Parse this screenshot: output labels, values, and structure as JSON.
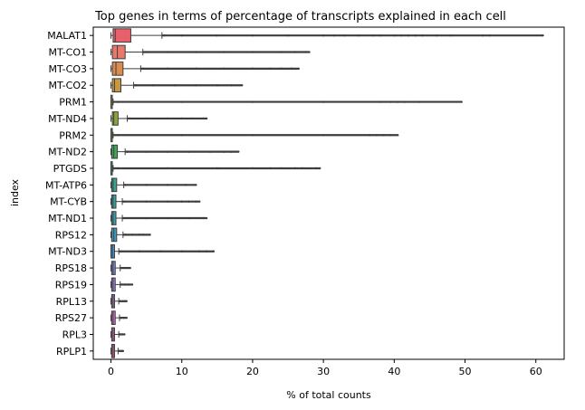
{
  "chart_data": {
    "type": "box",
    "title": "Top genes in terms of percentage of transcripts explained in each cell",
    "xlabel": "% of total counts",
    "ylabel": "index",
    "xlim": [
      -2.5,
      64
    ],
    "xticks": [
      0,
      10,
      20,
      30,
      40,
      50,
      60
    ],
    "grid": false,
    "legend": "none",
    "series": [
      {
        "name": "MALAT1",
        "color": "#e8606a",
        "q1": 0.3,
        "median": 0.6,
        "q3": 2.8,
        "whisker_low": 0.0,
        "whisker_high": 7.2,
        "max": 61.0,
        "outliers": [
          7.5,
          10,
          15,
          20,
          25,
          30,
          31.5,
          33,
          35,
          37,
          38,
          40,
          41,
          42,
          43,
          44,
          46,
          48,
          52.5,
          53.5,
          61
        ]
      },
      {
        "name": "MT-CO1",
        "color": "#e9776a",
        "q1": 0.2,
        "median": 0.9,
        "q3": 2.0,
        "whisker_low": 0.0,
        "whisker_high": 4.5,
        "max": 28.0,
        "outliers": [
          5,
          8,
          12,
          16,
          20,
          24,
          26,
          27.5,
          28
        ]
      },
      {
        "name": "MT-CO3",
        "color": "#d98c4e",
        "q1": 0.2,
        "median": 0.7,
        "q3": 1.7,
        "whisker_low": 0.0,
        "whisker_high": 4.2,
        "max": 26.5,
        "outliers": [
          4.5,
          8,
          12,
          16,
          20,
          22.5,
          24,
          25.5,
          26.5
        ]
      },
      {
        "name": "MT-CO2",
        "color": "#c99740",
        "q1": 0.2,
        "median": 0.5,
        "q3": 1.4,
        "whisker_low": 0.0,
        "whisker_high": 3.2,
        "max": 18.5,
        "outliers": [
          3.5,
          6,
          9,
          12,
          15,
          17,
          18.5
        ]
      },
      {
        "name": "PRM1",
        "color": "#a8a13c",
        "q1": 0.0,
        "median": 0.0,
        "q3": 0.1,
        "whisker_low": 0.0,
        "whisker_high": 0.3,
        "max": 49.5,
        "outliers": [
          1,
          10,
          20,
          30,
          38,
          39.5,
          40.5,
          41.5,
          43.5,
          49.5
        ]
      },
      {
        "name": "MT-ND4",
        "color": "#8aa83a",
        "q1": 0.2,
        "median": 0.4,
        "q3": 1.0,
        "whisker_low": 0.0,
        "whisker_high": 2.3,
        "max": 13.5,
        "outliers": [
          2.6,
          5,
          8,
          10,
          11.5,
          13,
          13.5
        ]
      },
      {
        "name": "PRM2",
        "color": "#5fb03e",
        "q1": 0.0,
        "median": 0.0,
        "q3": 0.1,
        "whisker_low": 0.0,
        "whisker_high": 0.3,
        "max": 40.5,
        "outliers": [
          1,
          10,
          20,
          30,
          36.5,
          37.5,
          38.5,
          39.5,
          40.5
        ]
      },
      {
        "name": "MT-ND2",
        "color": "#3fa85a",
        "q1": 0.1,
        "median": 0.4,
        "q3": 0.9,
        "whisker_low": 0.0,
        "whisker_high": 2.0,
        "max": 18.0,
        "outliers": [
          2.3,
          5,
          8,
          11,
          14,
          16,
          17,
          18
        ]
      },
      {
        "name": "PTGDS",
        "color": "#3ba87a",
        "q1": 0.0,
        "median": 0.0,
        "q3": 0.1,
        "whisker_low": 0.0,
        "whisker_high": 0.3,
        "max": 29.5,
        "outliers": [
          1,
          8,
          15,
          20,
          22.5,
          24,
          26,
          27,
          29,
          29.5
        ]
      },
      {
        "name": "MT-ATP6",
        "color": "#3aa58d",
        "q1": 0.1,
        "median": 0.3,
        "q3": 0.8,
        "whisker_low": 0.0,
        "whisker_high": 1.8,
        "max": 12.0,
        "outliers": [
          2,
          5,
          8,
          10.5,
          12
        ]
      },
      {
        "name": "MT-CYB",
        "color": "#3aa29c",
        "q1": 0.1,
        "median": 0.3,
        "q3": 0.7,
        "whisker_low": 0.0,
        "whisker_high": 1.6,
        "max": 12.5,
        "outliers": [
          1.9,
          5,
          8,
          10,
          11,
          12,
          12.5
        ]
      },
      {
        "name": "MT-ND1",
        "color": "#3c9eab",
        "q1": 0.1,
        "median": 0.3,
        "q3": 0.7,
        "whisker_low": 0.0,
        "whisker_high": 1.6,
        "max": 13.5,
        "outliers": [
          1.9,
          5,
          8,
          11,
          13,
          13.5
        ]
      },
      {
        "name": "RPS12",
        "color": "#3f9bbf",
        "q1": 0.1,
        "median": 0.4,
        "q3": 0.8,
        "whisker_low": 0.0,
        "whisker_high": 1.7,
        "max": 5.5,
        "outliers": [
          2,
          3,
          4,
          4.6,
          5.5
        ]
      },
      {
        "name": "MT-ND3",
        "color": "#4a90d0",
        "q1": 0.0,
        "median": 0.2,
        "q3": 0.5,
        "whisker_low": 0.0,
        "whisker_high": 1.1,
        "max": 14.5,
        "outliers": [
          1.4,
          4,
          7,
          10,
          12.5,
          13.5,
          14.5
        ]
      },
      {
        "name": "RPS18",
        "color": "#7a8ad9",
        "q1": 0.1,
        "median": 0.3,
        "q3": 0.6,
        "whisker_low": 0.0,
        "whisker_high": 1.3,
        "max": 2.7,
        "outliers": [
          1.5,
          2,
          2.4,
          2.7
        ]
      },
      {
        "name": "RPS19",
        "color": "#9a80d8",
        "q1": 0.1,
        "median": 0.3,
        "q3": 0.6,
        "whisker_low": 0.0,
        "whisker_high": 1.3,
        "max": 3.0,
        "outliers": [
          1.5,
          2,
          2.5,
          3.0
        ]
      },
      {
        "name": "RPL13",
        "color": "#b576d0",
        "q1": 0.1,
        "median": 0.3,
        "q3": 0.5,
        "whisker_low": 0.0,
        "whisker_high": 1.1,
        "max": 2.2,
        "outliers": [
          1.3,
          1.7,
          2.0,
          2.2
        ]
      },
      {
        "name": "RPS27",
        "color": "#cc6fc4",
        "q1": 0.1,
        "median": 0.3,
        "q3": 0.6,
        "whisker_low": 0.0,
        "whisker_high": 1.2,
        "max": 2.2,
        "outliers": [
          1.4,
          1.8,
          2.2
        ]
      },
      {
        "name": "RPL3",
        "color": "#d86aae",
        "q1": 0.1,
        "median": 0.3,
        "q3": 0.5,
        "whisker_low": 0.0,
        "whisker_high": 1.1,
        "max": 1.9,
        "outliers": [
          1.3,
          1.6,
          1.9
        ]
      },
      {
        "name": "RPLP1",
        "color": "#e36595",
        "q1": 0.1,
        "median": 0.3,
        "q3": 0.5,
        "whisker_low": 0.0,
        "whisker_high": 1.0,
        "max": 1.7,
        "outliers": [
          1.2,
          1.5,
          1.7
        ]
      }
    ]
  }
}
